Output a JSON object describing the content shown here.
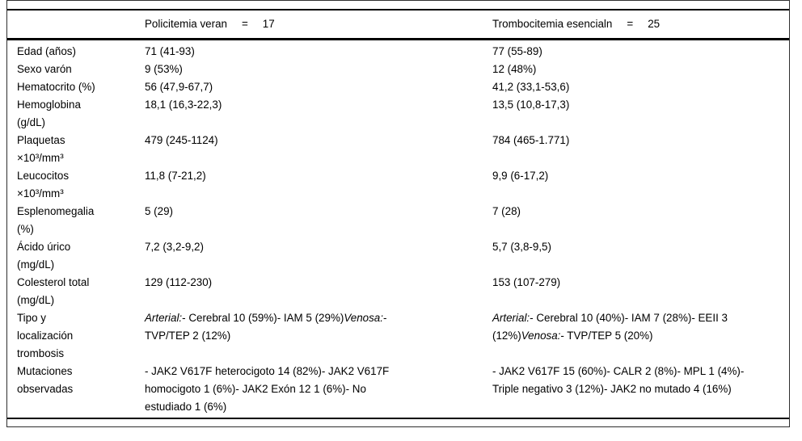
{
  "header": {
    "group1": {
      "name": "Policitemia veran",
      "eq": "=",
      "count": "17"
    },
    "group2": {
      "name": "Trombocitemia esencialn",
      "eq": "=",
      "count": "25"
    }
  },
  "rows": [
    {
      "label": "Edad (años)",
      "pv": "71 (41-93)",
      "te": "77 (55-89)"
    },
    {
      "label": "Sexo varón",
      "pv": "9 (53%)",
      "te": "12 (48%)"
    },
    {
      "label": "Hematocrito (%)",
      "pv": "56 (47,9-67,7)",
      "te": "41,2 (33,1-53,6)"
    },
    {
      "label": "Hemoglobina (g/dL)",
      "pv": "18,1 (16,3-22,3)",
      "te": "13,5 (10,8-17,3)"
    },
    {
      "label": "Plaquetas ×10³/mm³",
      "pv": "479 (245-1124)",
      "te": "784 (465-1.771)"
    },
    {
      "label": "Leucocitos ×10³/mm³",
      "pv": "11,8 (7-21,2)",
      "te": "9,9 (6-17,2)"
    },
    {
      "label": "Esplenomegalia (%)",
      "pv": "5 (29)",
      "te": "7 (28)"
    },
    {
      "label": "Ácido úrico (mg/dL)",
      "pv": "7,2 (3,2-9,2)",
      "te": "5,7 (3,8-9,5)"
    },
    {
      "label": "Colesterol total (mg/dL)",
      "pv": "129 (112-230)",
      "te": "153 (107-279)"
    },
    {
      "label": "Tipo y localización trombosis",
      "pv": [
        {
          "t": "Arterial:",
          "italic": true
        },
        {
          "t": "- Cerebral 10 (59%)- IAM 5 (29%)"
        },
        {
          "t": "Venosa:",
          "italic": true
        },
        {
          "t": "- TVP/TEP 2 (12%)"
        }
      ],
      "te": [
        {
          "t": "Arterial:",
          "italic": true
        },
        {
          "t": "- Cerebral 10 (40%)- IAM 7 (28%)- EEII 3 (12%)"
        },
        {
          "t": "Venosa:",
          "italic": true
        },
        {
          "t": "- TVP/TEP 5 (20%)"
        }
      ]
    },
    {
      "label": "Mutaciones observadas",
      "pv": "- JAK2 V617F heterocigoto 14 (82%)- JAK2 V617F homocigoto 1 (6%)- JAK2 Exón 12 1 (6%)- No estudiado 1 (6%)",
      "te": "- JAK2 V617F 15 (60%)- CALR 2 (8%)- MPL 1 (4%)- Triple negativo 3 (12%)- JAK2 no mutado 4 (16%)"
    }
  ]
}
